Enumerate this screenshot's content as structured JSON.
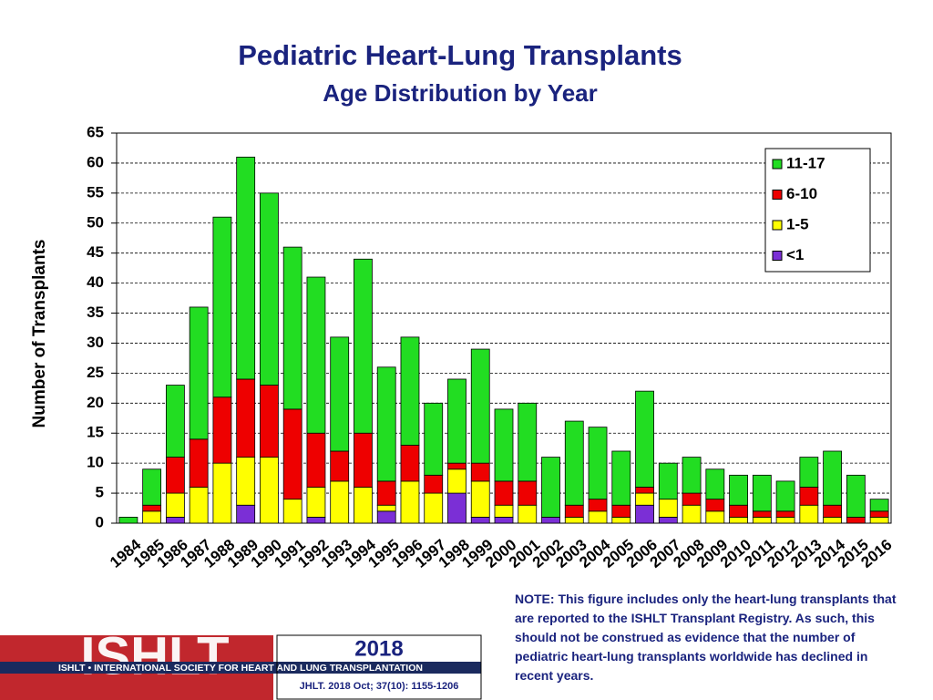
{
  "chart_data": {
    "type": "stacked-bar",
    "title": "Pediatric Heart-Lung Transplants",
    "subtitle": "Age Distribution by Year",
    "y_label": "Number of Transplants",
    "categories": [
      "1984",
      "1985",
      "1986",
      "1987",
      "1988",
      "1989",
      "1990",
      "1991",
      "1992",
      "1993",
      "1994",
      "1995",
      "1996",
      "1997",
      "1998",
      "1999",
      "2000",
      "2001",
      "2002",
      "2003",
      "2004",
      "2005",
      "2006",
      "2007",
      "2008",
      "2009",
      "2010",
      "2011",
      "2012",
      "2013",
      "2014",
      "2015",
      "2016"
    ],
    "series": [
      {
        "name": "<1",
        "color": "#7b2fd6",
        "values": [
          0,
          0,
          1,
          0,
          0,
          3,
          0,
          0,
          1,
          0,
          0,
          2,
          0,
          0,
          5,
          1,
          1,
          0,
          1,
          0,
          0,
          0,
          3,
          1,
          0,
          0,
          0,
          0,
          0,
          0,
          0,
          0,
          0
        ]
      },
      {
        "name": "1-5",
        "color": "#ffff00",
        "values": [
          0,
          2,
          4,
          6,
          10,
          8,
          11,
          4,
          5,
          7,
          6,
          1,
          7,
          5,
          4,
          6,
          2,
          3,
          0,
          1,
          2,
          1,
          2,
          3,
          3,
          2,
          1,
          1,
          1,
          3,
          1,
          0,
          1
        ]
      },
      {
        "name": "6-10",
        "color": "#ee0000",
        "values": [
          0,
          1,
          6,
          8,
          11,
          13,
          12,
          15,
          9,
          5,
          9,
          4,
          6,
          3,
          1,
          3,
          4,
          4,
          0,
          2,
          2,
          2,
          1,
          0,
          2,
          2,
          2,
          1,
          1,
          3,
          2,
          1,
          1
        ]
      },
      {
        "name": "11-17",
        "color": "#22dd22",
        "values": [
          1,
          6,
          12,
          22,
          30,
          37,
          32,
          27,
          26,
          19,
          29,
          19,
          18,
          12,
          14,
          19,
          12,
          13,
          10,
          14,
          12,
          9,
          16,
          6,
          6,
          5,
          5,
          6,
          5,
          5,
          9,
          7,
          2
        ]
      }
    ],
    "ylim": [
      0,
      65
    ],
    "yticks": [
      0,
      5,
      10,
      15,
      20,
      25,
      30,
      35,
      40,
      45,
      50,
      55,
      60,
      65
    ],
    "grid": true,
    "legend": "top-right",
    "note": "NOTE: This figure includes only the heart-lung transplants that are reported to the ISHLT Transplant Registry.  As such, this should not be construed as evidence that the number of pediatric heart-lung transplants worldwide has declined in recent years.",
    "logo_abbr": "ISHLT",
    "logo_text": "ISHLT • INTERNATIONAL SOCIETY FOR HEART AND LUNG TRANSPLANTATION",
    "year": "2018",
    "citation": "JHLT. 2018 Oct; 37(10): 1155-1206"
  }
}
